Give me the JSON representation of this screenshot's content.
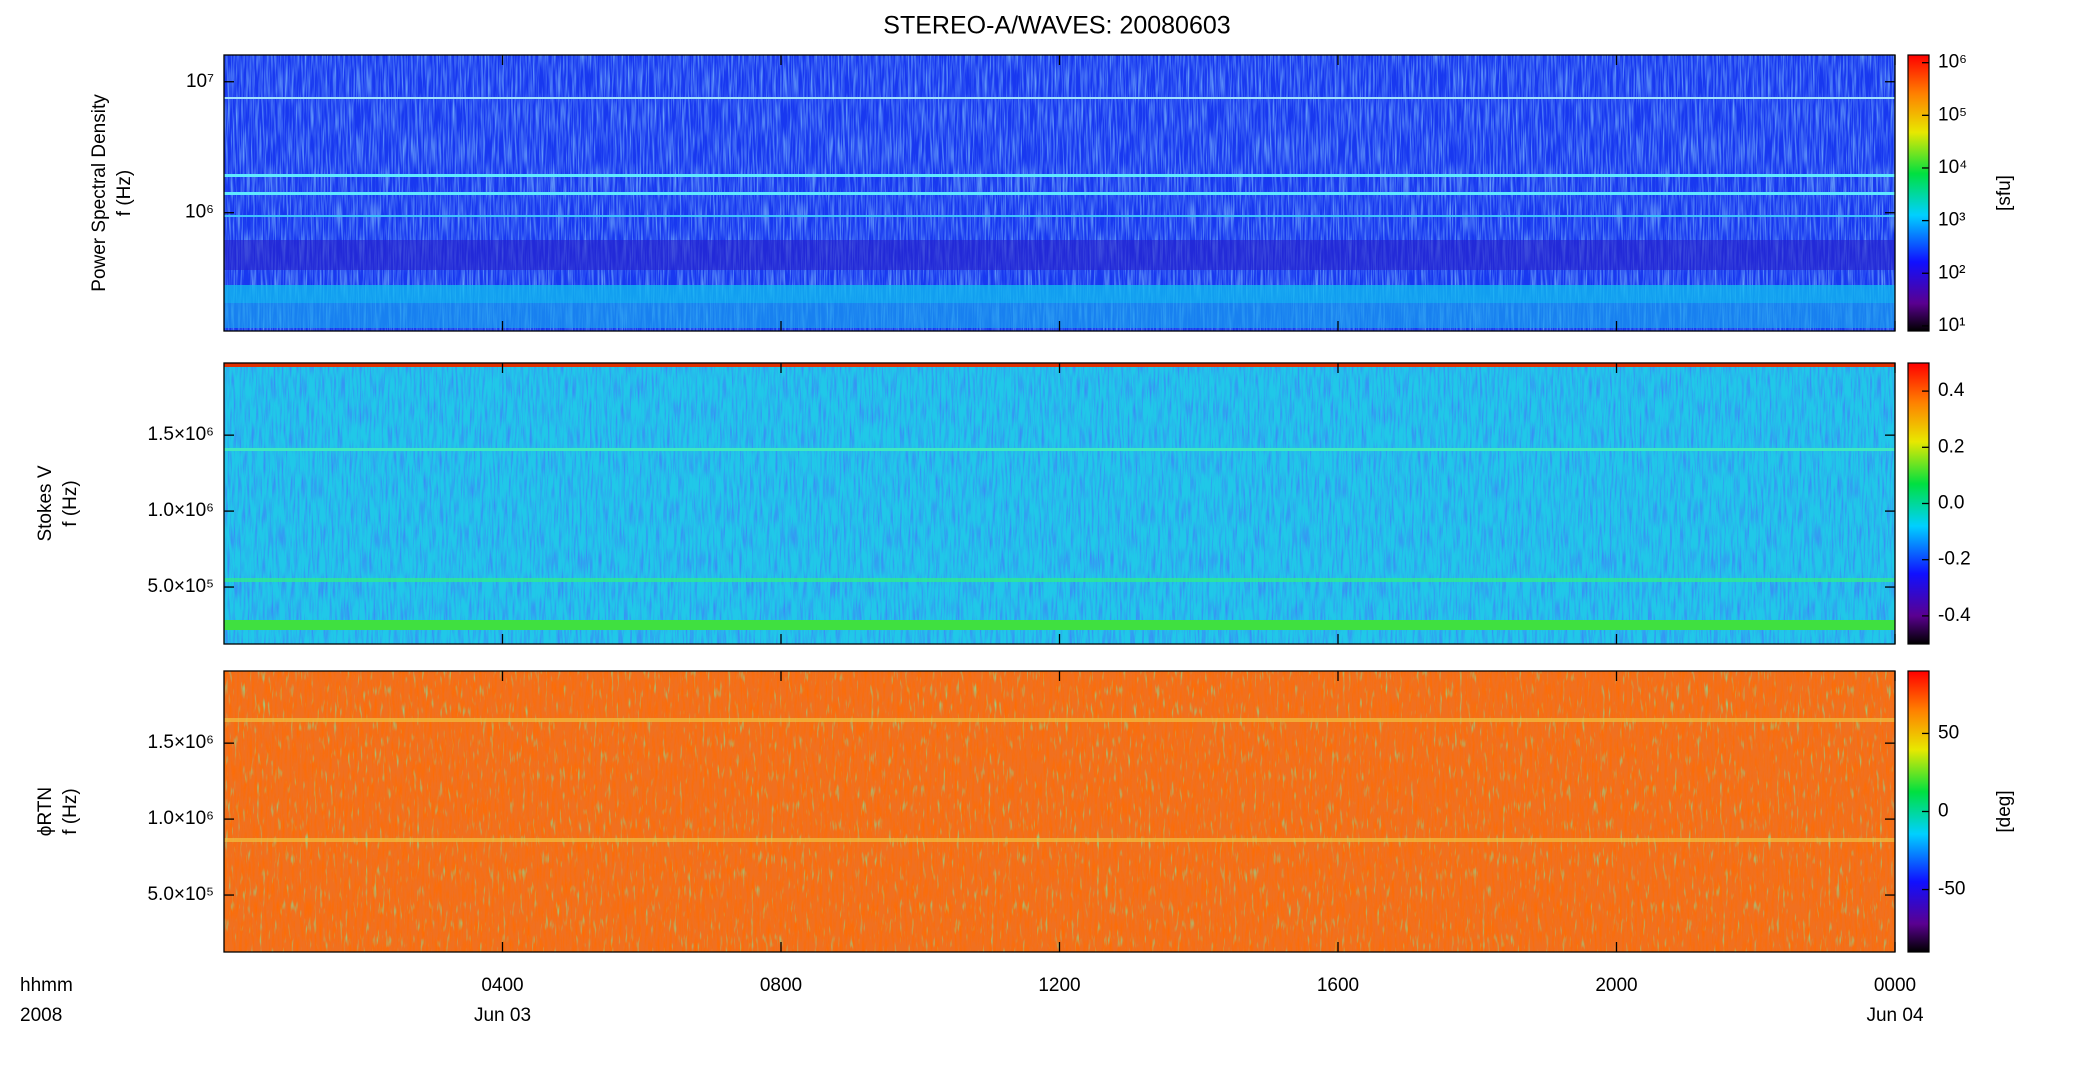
{
  "chart_data": {
    "title": "STEREO-A/WAVES: 20080603",
    "xlim": [
      0,
      24
    ],
    "xticks": [
      {
        "value": 4,
        "label": "0400"
      },
      {
        "value": 8,
        "label": "0800"
      },
      {
        "value": 12,
        "label": "1200"
      },
      {
        "value": 16,
        "label": "1600"
      },
      {
        "value": 20,
        "label": "2000"
      },
      {
        "value": 24,
        "label": "0000"
      }
    ],
    "xdate_labels": [
      {
        "value": 4,
        "label": "Jun 03"
      },
      {
        "value": 24,
        "label": "Jun 04"
      }
    ],
    "xaxis_labels": [
      "hhmm",
      "2008"
    ],
    "panels": [
      {
        "type": "spectrogram",
        "ylabel": [
          "Power Spectral Density",
          "f (Hz)"
        ],
        "yscale": "log",
        "ylim": [
          125000,
          16000000
        ],
        "yticks": [
          {
            "value": 1000000,
            "label": "10⁶"
          },
          {
            "value": 10000000,
            "label": "10⁷"
          }
        ],
        "colorbar": {
          "scale": "log",
          "lim": [
            8,
            1400000
          ],
          "label": "[sfu]",
          "ticks": [
            {
              "value": 10,
              "label": "10¹"
            },
            {
              "value": 100,
              "label": "10²"
            },
            {
              "value": 1000,
              "label": "10³"
            },
            {
              "value": 10000,
              "label": "10⁴"
            },
            {
              "value": 100000,
              "label": "10⁵"
            },
            {
              "value": 1000000,
              "label": "10⁶"
            }
          ]
        }
      },
      {
        "type": "spectrogram",
        "ylabel": [
          "Stokes V",
          "f (Hz)"
        ],
        "yscale": "linear",
        "ylim": [
          125000,
          1975000
        ],
        "yticks": [
          {
            "value": 500000,
            "label": "5.0×10⁵"
          },
          {
            "value": 1000000,
            "label": "1.0×10⁶"
          },
          {
            "value": 1500000,
            "label": "1.5×10⁶"
          }
        ],
        "colorbar": {
          "scale": "linear",
          "lim": [
            -0.5,
            0.5
          ],
          "ticks": [
            -0.4,
            -0.2,
            {
              "value": 0,
              "label": "0.0"
            },
            0.2,
            0.4
          ]
        }
      },
      {
        "type": "spectrogram",
        "ylabel": [
          "ϕRTN",
          "f (Hz)"
        ],
        "yscale": "linear",
        "ylim": [
          125000,
          1975000
        ],
        "yticks": [
          {
            "value": 500000,
            "label": "5.0×10⁵"
          },
          {
            "value": 1000000,
            "label": "1.0×10⁶"
          },
          {
            "value": 1500000,
            "label": "1.5×10⁶"
          }
        ],
        "colorbar": {
          "scale": "linear",
          "lim": [
            -90,
            90
          ],
          "label": "[deg]",
          "ticks": [
            -50,
            0,
            50
          ]
        }
      }
    ]
  }
}
